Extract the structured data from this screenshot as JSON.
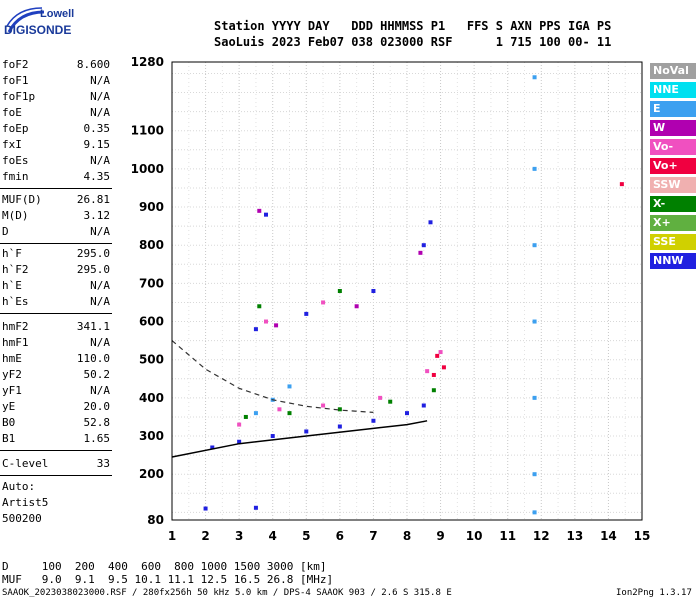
{
  "logo": {
    "line1": "Lowell",
    "line2": "DIGISONDE"
  },
  "header": {
    "line1": "Station YYYY DAY   DDD HHMMSS P1   FFS S AXN PPS IGA PS",
    "line2": "SaoLuis 2023 Feb07 038 023000 RSF      1 715 100 00- 11"
  },
  "params": [
    {
      "label": "foF2",
      "value": "8.600"
    },
    {
      "label": "foF1",
      "value": "N/A"
    },
    {
      "label": "foF1p",
      "value": "N/A"
    },
    {
      "label": "foE",
      "value": "N/A"
    },
    {
      "label": "foEp",
      "value": "0.35"
    },
    {
      "label": "fxI",
      "value": "9.15"
    },
    {
      "label": "foEs",
      "value": "N/A"
    },
    {
      "label": "fmin",
      "value": "4.35"
    },
    {
      "label": "MUF(D)",
      "value": "26.81"
    },
    {
      "label": "M(D)",
      "value": "3.12"
    },
    {
      "label": "D",
      "value": "N/A"
    },
    {
      "label": "h`F",
      "value": "295.0"
    },
    {
      "label": "h`F2",
      "value": "295.0"
    },
    {
      "label": "h`E",
      "value": "N/A"
    },
    {
      "label": "h`Es",
      "value": "N/A"
    },
    {
      "label": "hmF2",
      "value": "341.1"
    },
    {
      "label": "hmF1",
      "value": "N/A"
    },
    {
      "label": "hmE",
      "value": "110.0"
    },
    {
      "label": "yF2",
      "value": "50.2"
    },
    {
      "label": "yF1",
      "value": "N/A"
    },
    {
      "label": "yE",
      "value": "20.0"
    },
    {
      "label": "B0",
      "value": "52.8"
    },
    {
      "label": "B1",
      "value": "1.65"
    },
    {
      "label": "C-level",
      "value": "33"
    }
  ],
  "auto": {
    "line1": "Auto:",
    "line2": "Artist5",
    "line3": "500200"
  },
  "footer": {
    "d_row": "D     100  200  400  600  800 1000 1500 3000 [km]",
    "muf_row": "MUF   9.0  9.1  9.5 10.1 11.1 12.5 16.5 26.8 [MHz]",
    "file_line": "SAAOK_2023038023000.RSF / 280fx256h 50 kHz 5.0 km / DPS-4 SAAOK 903 / 2.6 S 315.8 E",
    "version": "Ion2Png 1.3.17"
  },
  "legend": [
    {
      "label": "NoVal",
      "color": "#a0a0a0"
    },
    {
      "label": "NNE",
      "color": "#00e0f0"
    },
    {
      "label": "E",
      "color": "#3ca0f0"
    },
    {
      "label": "W",
      "color": "#b000b0"
    },
    {
      "label": "Vo-",
      "color": "#f050c0"
    },
    {
      "label": "Vo+",
      "color": "#f00040"
    },
    {
      "label": "SSW",
      "color": "#f0b0b0"
    },
    {
      "label": "X-",
      "color": "#008000"
    },
    {
      "label": "X+",
      "color": "#60b040"
    },
    {
      "label": "SSE",
      "color": "#d0d000"
    },
    {
      "label": "NNW",
      "color": "#2020e0"
    }
  ],
  "chart_data": {
    "type": "scatter",
    "title": "",
    "xlabel": "",
    "ylabel": "",
    "xlim": [
      1,
      15
    ],
    "ylim": [
      80,
      1280
    ],
    "x_ticks": [
      1,
      2,
      3,
      4,
      5,
      6,
      7,
      8,
      9,
      10,
      11,
      12,
      13,
      14,
      15
    ],
    "y_ticks": [
      80,
      200,
      300,
      400,
      500,
      600,
      700,
      800,
      900,
      1000,
      1100,
      1280
    ],
    "grid": true,
    "series": [
      {
        "name": "NNW",
        "color": "#2020e0",
        "points": [
          [
            2.2,
            270
          ],
          [
            3.0,
            285
          ],
          [
            4.0,
            300
          ],
          [
            5.0,
            312
          ],
          [
            6.0,
            325
          ],
          [
            7.0,
            340
          ],
          [
            8.0,
            360
          ],
          [
            8.5,
            380
          ],
          [
            3.5,
            580
          ],
          [
            5.0,
            620
          ],
          [
            7.0,
            680
          ],
          [
            8.5,
            800
          ],
          [
            8.7,
            860
          ],
          [
            3.8,
            880
          ],
          [
            2.0,
            110
          ],
          [
            3.5,
            112
          ]
        ]
      },
      {
        "name": "X-",
        "color": "#008000",
        "points": [
          [
            3.2,
            350
          ],
          [
            4.5,
            360
          ],
          [
            6.0,
            370
          ],
          [
            7.5,
            390
          ],
          [
            8.8,
            420
          ],
          [
            3.6,
            640
          ],
          [
            6.0,
            680
          ]
        ]
      },
      {
        "name": "Vo-",
        "color": "#f050c0",
        "points": [
          [
            3.0,
            330
          ],
          [
            4.2,
            370
          ],
          [
            5.5,
            380
          ],
          [
            7.2,
            400
          ],
          [
            8.6,
            470
          ],
          [
            9.0,
            520
          ],
          [
            3.8,
            600
          ],
          [
            5.5,
            650
          ]
        ]
      },
      {
        "name": "E",
        "color": "#3ca0f0",
        "points": [
          [
            3.5,
            360
          ],
          [
            4.0,
            395
          ],
          [
            4.5,
            430
          ],
          [
            11.8,
            1240
          ],
          [
            11.8,
            1000
          ],
          [
            11.8,
            800
          ],
          [
            11.8,
            600
          ],
          [
            11.8,
            400
          ],
          [
            11.8,
            200
          ],
          [
            11.8,
            100
          ]
        ]
      },
      {
        "name": "Vo+",
        "color": "#f00040",
        "points": [
          [
            8.9,
            510
          ],
          [
            8.8,
            460
          ],
          [
            9.1,
            480
          ],
          [
            14.4,
            960
          ]
        ]
      },
      {
        "name": "W",
        "color": "#b000b0",
        "points": [
          [
            3.6,
            890
          ],
          [
            4.1,
            590
          ],
          [
            6.5,
            640
          ],
          [
            8.4,
            780
          ]
        ]
      }
    ],
    "annotations": {
      "trace_curve": [
        [
          1,
          245
        ],
        [
          3,
          280
        ],
        [
          5,
          300
        ],
        [
          7,
          320
        ],
        [
          8,
          330
        ],
        [
          8.6,
          340
        ]
      ],
      "dashed_curve": [
        [
          1,
          550
        ],
        [
          2,
          475
        ],
        [
          3,
          425
        ],
        [
          4,
          395
        ],
        [
          5,
          378
        ],
        [
          6,
          368
        ],
        [
          7,
          362
        ]
      ]
    }
  }
}
